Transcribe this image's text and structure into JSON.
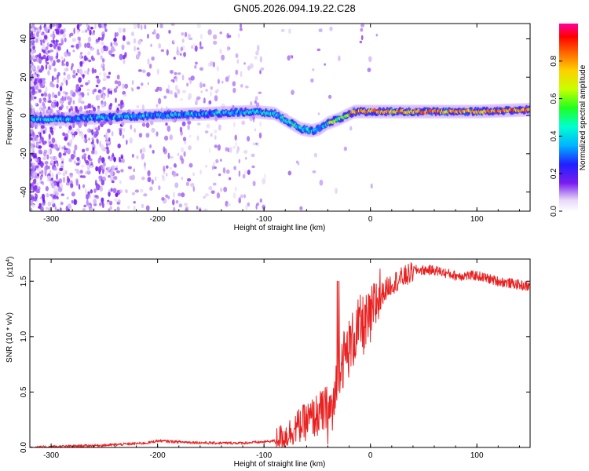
{
  "title": "GN05.2026.094.19.22.C28",
  "chart_data": [
    {
      "type": "heatmap",
      "title": "GN05.2026.094.19.22.C28",
      "xlabel": "Height of straight line (km)",
      "ylabel": "Frequency (Hz)",
      "xlim": [
        -320,
        150
      ],
      "ylim": [
        -50,
        48
      ],
      "xticks": [
        -300,
        -200,
        -100,
        0,
        100
      ],
      "xtick_labels": [
        "-300",
        "-200",
        "-100",
        "0",
        "100"
      ],
      "yticks": [
        -40,
        -20,
        0,
        20,
        40
      ],
      "ytick_labels": [
        "-40",
        "-20",
        "0",
        "20",
        "40"
      ],
      "colorbar": {
        "label": "Normalized spectral amplitude",
        "range": [
          0.0,
          1.0
        ],
        "ticks": [
          0.0,
          0.2,
          0.4,
          0.6,
          0.8
        ],
        "tick_labels": [
          "0.0",
          "0.2",
          "0.4",
          "0.6",
          "0.8"
        ]
      },
      "ridge": {
        "name": "dominant frequency track",
        "x": [
          -320,
          -300,
          -250,
          -200,
          -150,
          -110,
          -90,
          -75,
          -65,
          -55,
          -48,
          -40,
          -30,
          -15,
          0,
          50,
          100,
          150
        ],
        "y": [
          -2,
          -2,
          -1,
          0,
          1,
          2,
          1,
          -4,
          -7,
          -8,
          -7,
          -4,
          -2,
          2,
          2,
          2,
          2,
          3
        ]
      }
    },
    {
      "type": "line",
      "xlabel": "Height of straight line (km)",
      "ylabel": "SNR (10 * v/v)",
      "y_scale_label": "(x10",
      "y_scale_exponent": "4",
      "y_scale_suffix": ")",
      "xlim": [
        -320,
        150
      ],
      "ylim": [
        0.0,
        1.7
      ],
      "xticks": [
        -300,
        -200,
        -100,
        0,
        100
      ],
      "xtick_labels": [
        "-300",
        "-200",
        "-100",
        "0",
        "100"
      ],
      "yticks": [
        0.0,
        0.5,
        1.0,
        1.5
      ],
      "ytick_labels": [
        "0.0",
        "0.5",
        "1.0",
        "1.5"
      ],
      "series": [
        {
          "name": "SNR",
          "color": "#e82020",
          "x": [
            -320,
            -250,
            -210,
            -200,
            -180,
            -150,
            -120,
            -100,
            -90,
            -80,
            -70,
            -60,
            -50,
            -40,
            -35,
            -32,
            -30,
            -28,
            -25,
            -20,
            -15,
            -10,
            -5,
            0,
            5,
            10,
            20,
            30,
            40,
            60,
            80,
            100,
            120,
            150
          ],
          "y": [
            0.0,
            0.02,
            0.04,
            0.06,
            0.05,
            0.04,
            0.04,
            0.05,
            0.06,
            0.08,
            0.15,
            0.2,
            0.25,
            0.3,
            0.35,
            0.5,
            0.7,
            0.8,
            0.8,
            0.9,
            1.0,
            1.1,
            1.1,
            1.15,
            1.3,
            1.4,
            1.5,
            1.55,
            1.6,
            1.6,
            1.55,
            1.55,
            1.5,
            1.45
          ]
        }
      ]
    }
  ],
  "colors": {
    "snr_line": "#e82020",
    "axis": "#000000"
  }
}
